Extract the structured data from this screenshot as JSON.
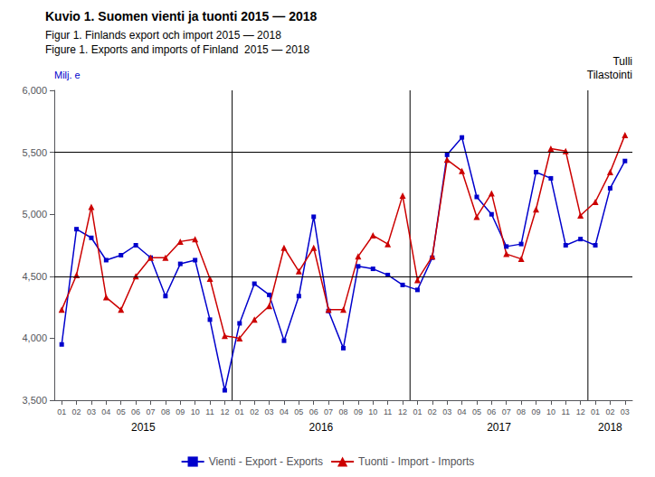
{
  "chart_data": {
    "type": "line",
    "title": "Kuvio 1. Suomen vienti ja tuonti 2015 — 2018",
    "subtitle": [
      "Figur 1. Finlands export och import 2015 — 2018",
      "Figure 1. Exports and imports of Finland  2015 — 2018"
    ],
    "ylabel": "Milj. e",
    "annotations": [
      "Tulli",
      "Tilastointi"
    ],
    "group_labels": [
      "2015",
      "2016",
      "2017",
      "2018"
    ],
    "categories": [
      "01",
      "02",
      "03",
      "04",
      "05",
      "06",
      "07",
      "08",
      "09",
      "10",
      "11",
      "12",
      "01",
      "02",
      "03",
      "04",
      "05",
      "06",
      "07",
      "08",
      "09",
      "10",
      "11",
      "12",
      "01",
      "02",
      "03",
      "04",
      "05",
      "06",
      "07",
      "08",
      "09",
      "10",
      "11",
      "12",
      "01",
      "02",
      "03"
    ],
    "series": [
      {
        "name": "Vienti - Export - Exports",
        "color": "#0000CC",
        "marker": "square",
        "values": [
          3950,
          4880,
          4810,
          4630,
          4670,
          4750,
          4650,
          4340,
          4600,
          4630,
          4150,
          3580,
          4120,
          4440,
          4350,
          3980,
          4340,
          4980,
          4220,
          3920,
          4580,
          4560,
          4510,
          4430,
          4390,
          4650,
          5480,
          5620,
          5140,
          5000,
          4740,
          4760,
          5340,
          5290,
          4750,
          4800,
          4750,
          5210,
          5430
        ]
      },
      {
        "name": "Tuonti - Import - Imports",
        "color": "#CC0000",
        "marker": "triangle",
        "values": [
          4230,
          4510,
          5060,
          4330,
          4230,
          4500,
          4650,
          4650,
          4780,
          4800,
          4480,
          4020,
          4000,
          4150,
          4260,
          4730,
          4540,
          4730,
          4230,
          4230,
          4660,
          4830,
          4760,
          5150,
          4470,
          4660,
          5440,
          5350,
          4980,
          5170,
          4680,
          4640,
          5040,
          5530,
          5510,
          4990,
          5100,
          5340,
          5640
        ]
      }
    ],
    "hlines": [
      4500,
      5500
    ],
    "ylim": [
      3500,
      6000
    ],
    "yticks": [
      3500,
      4000,
      4500,
      5000,
      5500,
      6000
    ],
    "grid": false,
    "legend": "bottom"
  }
}
